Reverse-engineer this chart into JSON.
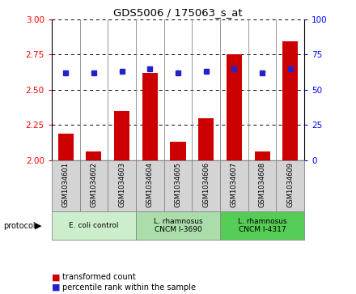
{
  "title": "GDS5006 / 175063_s_at",
  "samples": [
    "GSM1034601",
    "GSM1034602",
    "GSM1034603",
    "GSM1034604",
    "GSM1034605",
    "GSM1034606",
    "GSM1034607",
    "GSM1034608",
    "GSM1034609"
  ],
  "transformed_count": [
    2.19,
    2.06,
    2.35,
    2.62,
    2.13,
    2.3,
    2.75,
    2.06,
    2.84
  ],
  "percentile_rank": [
    62,
    62,
    63,
    65,
    62,
    63,
    65,
    62,
    65
  ],
  "ylim_left": [
    2.0,
    3.0
  ],
  "ylim_right": [
    0,
    100
  ],
  "yticks_left": [
    2.0,
    2.25,
    2.5,
    2.75,
    3.0
  ],
  "yticks_right": [
    0,
    25,
    50,
    75,
    100
  ],
  "bar_color": "#cc0000",
  "dot_color": "#2222cc",
  "protocol_groups": [
    {
      "label": "E. coli control",
      "start": 0,
      "end": 3,
      "color": "#cceecc"
    },
    {
      "label": "L. rhamnosus\nCNCM I-3690",
      "start": 3,
      "end": 6,
      "color": "#aaddaa"
    },
    {
      "label": "L. rhamnosus\nCNCM I-4317",
      "start": 6,
      "end": 9,
      "color": "#55cc55"
    }
  ],
  "legend_bar_label": "transformed count",
  "legend_dot_label": "percentile rank within the sample",
  "protocol_label": "protocol",
  "bg_color": "#ffffff",
  "cell_bg": "#d4d4d4"
}
